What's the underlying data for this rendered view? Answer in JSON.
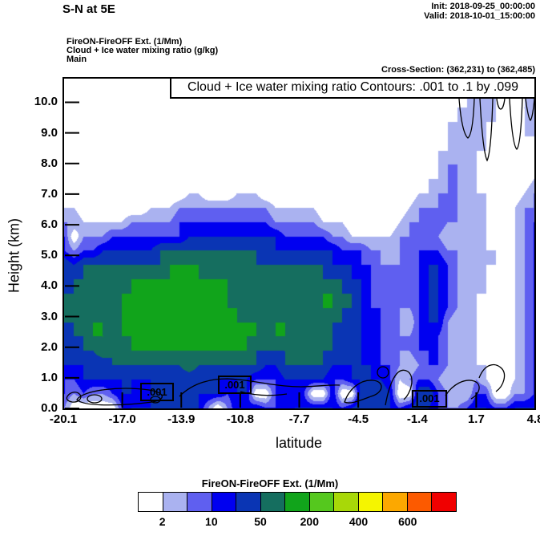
{
  "header": {
    "title": "S-N at 5E",
    "init": "Init: 2018-09-25_00:00:00",
    "valid": "Valid: 2018-10-01_15:00:00",
    "subtitle_lines": [
      "FireON-FireOFF Ext.  (1/Mm)",
      "Cloud + Ice water mixing ratio  (g/kg)",
      "Main"
    ],
    "cross_section": "Cross-Section: (362,231) to (362,485)"
  },
  "chart_data": {
    "type": "heatmap",
    "title": "Cloud + Ice water mixing ratio Contours: .001 to .1 by .099",
    "xlabel": "latitude",
    "ylabel": "Height (km)",
    "x_ticks": [
      "-20.1",
      "-17.0",
      "-13.9",
      "-10.8",
      "-7.7",
      "-4.5",
      "-1.4",
      "1.7",
      "4.8"
    ],
    "y_ticks": [
      "0.0",
      "1.0",
      "2.0",
      "3.0",
      "4.0",
      "5.0",
      "6.0",
      "7.0",
      "8.0",
      "9.0",
      "10.0"
    ],
    "xlim": [
      -20.1,
      4.8
    ],
    "ylim": [
      0.0,
      10.9
    ],
    "grid_on": false,
    "contour_labels": [
      ".001",
      ".001",
      ".001"
    ],
    "contour_line_levels": [
      0.001,
      0.1
    ],
    "grid": {
      "cols": 50,
      "rows": 24,
      "top_km": 10.7,
      "bottom_km": 0.35,
      "palette": [
        "#ffffff",
        "#aab2f0",
        "#5f5ff0",
        "#0000f0",
        "#0a35b4",
        "#156e5f",
        "#11a41b",
        "#55c81e"
      ],
      "values": [
        [
          0,
          0,
          0,
          0,
          0,
          0,
          0,
          0,
          0,
          0,
          0,
          0,
          0,
          0,
          0,
          0,
          0,
          0,
          0,
          0,
          0,
          0,
          0,
          0,
          0,
          0,
          0,
          0,
          0,
          0,
          0,
          0,
          0,
          0,
          0,
          0,
          0,
          0,
          0,
          0,
          0,
          0,
          0,
          1,
          1,
          1,
          0,
          0,
          1,
          2
        ],
        [
          0,
          0,
          0,
          0,
          0,
          0,
          0,
          0,
          0,
          0,
          0,
          0,
          0,
          0,
          0,
          0,
          0,
          0,
          0,
          0,
          0,
          0,
          0,
          0,
          0,
          0,
          0,
          0,
          0,
          0,
          0,
          0,
          0,
          0,
          0,
          0,
          0,
          0,
          0,
          0,
          0,
          0,
          1,
          2,
          1,
          1,
          0,
          0,
          1,
          2
        ],
        [
          0,
          0,
          0,
          0,
          0,
          0,
          0,
          0,
          0,
          0,
          0,
          0,
          0,
          0,
          0,
          0,
          0,
          0,
          0,
          0,
          0,
          0,
          0,
          0,
          0,
          0,
          0,
          0,
          0,
          0,
          0,
          0,
          0,
          0,
          0,
          0,
          0,
          0,
          0,
          0,
          0,
          1,
          1,
          2,
          1,
          1,
          0,
          1,
          1,
          1
        ],
        [
          0,
          0,
          0,
          0,
          0,
          0,
          0,
          0,
          0,
          0,
          0,
          0,
          0,
          0,
          0,
          0,
          0,
          0,
          0,
          0,
          0,
          0,
          0,
          0,
          0,
          0,
          0,
          0,
          0,
          0,
          0,
          0,
          0,
          0,
          0,
          0,
          0,
          0,
          0,
          0,
          1,
          1,
          2,
          2,
          1,
          1,
          0,
          0,
          1,
          1
        ],
        [
          0,
          0,
          0,
          0,
          0,
          0,
          0,
          0,
          0,
          0,
          0,
          0,
          0,
          0,
          0,
          0,
          0,
          0,
          0,
          0,
          0,
          0,
          0,
          0,
          0,
          0,
          0,
          0,
          0,
          0,
          0,
          0,
          0,
          0,
          0,
          0,
          0,
          0,
          0,
          0,
          1,
          1,
          2,
          1,
          1,
          0,
          0,
          0,
          1,
          1
        ],
        [
          0,
          0,
          0,
          0,
          0,
          0,
          0,
          0,
          0,
          0,
          0,
          0,
          0,
          0,
          0,
          0,
          0,
          0,
          0,
          0,
          0,
          0,
          0,
          0,
          0,
          0,
          0,
          0,
          0,
          0,
          0,
          0,
          0,
          0,
          0,
          0,
          0,
          0,
          0,
          1,
          1,
          2,
          2,
          1,
          1,
          0,
          0,
          0,
          0,
          0
        ],
        [
          0,
          0,
          0,
          0,
          0,
          0,
          0,
          0,
          0,
          0,
          0,
          0,
          0,
          0,
          0,
          0,
          0,
          0,
          0,
          0,
          0,
          0,
          0,
          0,
          0,
          0,
          0,
          0,
          0,
          0,
          0,
          0,
          0,
          0,
          0,
          0,
          0,
          0,
          0,
          1,
          2,
          2,
          1,
          1,
          0,
          0,
          0,
          0,
          0,
          0
        ],
        [
          0,
          0,
          0,
          0,
          0,
          0,
          0,
          0,
          0,
          0,
          0,
          0,
          0,
          0,
          0,
          0,
          0,
          0,
          0,
          0,
          0,
          0,
          0,
          0,
          0,
          0,
          0,
          0,
          0,
          0,
          0,
          0,
          0,
          0,
          0,
          0,
          0,
          0,
          1,
          1,
          2,
          2,
          1,
          1,
          0,
          0,
          0,
          0,
          0,
          1
        ],
        [
          0,
          0,
          0,
          0,
          0,
          0,
          0,
          0,
          0,
          0,
          0,
          0,
          0,
          1,
          1,
          0,
          0,
          0,
          1,
          1,
          1,
          0,
          0,
          0,
          0,
          0,
          0,
          0,
          0,
          0,
          0,
          0,
          0,
          0,
          0,
          0,
          0,
          1,
          1,
          2,
          2,
          2,
          1,
          1,
          1,
          0,
          0,
          0,
          1,
          2
        ],
        [
          1,
          1,
          0,
          0,
          0,
          0,
          0,
          0,
          0,
          1,
          1,
          1,
          2,
          2,
          2,
          2,
          2,
          2,
          2,
          2,
          2,
          2,
          1,
          1,
          1,
          1,
          1,
          0,
          0,
          0,
          0,
          0,
          0,
          0,
          0,
          0,
          1,
          2,
          2,
          2,
          2,
          2,
          1,
          1,
          1,
          0,
          0,
          1,
          2,
          2
        ],
        [
          2,
          2,
          1,
          1,
          1,
          1,
          1,
          2,
          2,
          2,
          2,
          2,
          3,
          3,
          3,
          3,
          3,
          3,
          3,
          3,
          3,
          3,
          2,
          2,
          2,
          2,
          2,
          1,
          1,
          1,
          0,
          0,
          0,
          0,
          0,
          1,
          2,
          2,
          2,
          3,
          2,
          2,
          1,
          1,
          1,
          0,
          0,
          1,
          2,
          3
        ],
        [
          3,
          0,
          2,
          2,
          2,
          3,
          3,
          3,
          3,
          3,
          3,
          3,
          3,
          4,
          4,
          4,
          4,
          4,
          4,
          4,
          4,
          4,
          4,
          3,
          3,
          3,
          3,
          3,
          2,
          2,
          1,
          1,
          1,
          1,
          1,
          2,
          2,
          2,
          2,
          2,
          1,
          1,
          1,
          1,
          1,
          0,
          0,
          1,
          2,
          3
        ],
        [
          3,
          2,
          3,
          3,
          4,
          4,
          4,
          4,
          4,
          4,
          5,
          5,
          5,
          5,
          5,
          5,
          5,
          5,
          5,
          5,
          5,
          4,
          4,
          4,
          4,
          4,
          4,
          4,
          4,
          3,
          3,
          3,
          2,
          2,
          1,
          2,
          3,
          3,
          3,
          3,
          2,
          2,
          1,
          1,
          1,
          1,
          0,
          1,
          2,
          3
        ],
        [
          5,
          4,
          5,
          5,
          5,
          5,
          5,
          5,
          5,
          5,
          5,
          6,
          6,
          6,
          6,
          5,
          5,
          5,
          5,
          5,
          5,
          5,
          5,
          5,
          5,
          5,
          5,
          5,
          4,
          4,
          4,
          3,
          3,
          2,
          2,
          2,
          2,
          3,
          4,
          4,
          3,
          2,
          1,
          1,
          1,
          1,
          0,
          1,
          2,
          3
        ],
        [
          4,
          5,
          5,
          5,
          5,
          6,
          5,
          6,
          6,
          6,
          6,
          6,
          6,
          7,
          6,
          6,
          6,
          6,
          6,
          6,
          5,
          5,
          5,
          5,
          5,
          5,
          5,
          5,
          5,
          5,
          4,
          4,
          3,
          2,
          2,
          2,
          2,
          3,
          4,
          4,
          3,
          2,
          1,
          1,
          1,
          0,
          0,
          1,
          2,
          3
        ],
        [
          5,
          5,
          5,
          5,
          5,
          5,
          6,
          6,
          6,
          6,
          6,
          6,
          6,
          6,
          6,
          6,
          6,
          6,
          5,
          5,
          5,
          5,
          5,
          5,
          5,
          5,
          5,
          6,
          6,
          5,
          5,
          4,
          3,
          2,
          2,
          2,
          2,
          3,
          4,
          4,
          3,
          2,
          1,
          1,
          1,
          0,
          0,
          1,
          2,
          3
        ],
        [
          5,
          5,
          5,
          5,
          5,
          6,
          6,
          6,
          6,
          6,
          6,
          6,
          6,
          6,
          6,
          6,
          6,
          6,
          6,
          5,
          5,
          5,
          5,
          5,
          5,
          5,
          5,
          6,
          6,
          5,
          5,
          4,
          3,
          3,
          2,
          2,
          2,
          3,
          4,
          4,
          3,
          2,
          1,
          1,
          0,
          0,
          0,
          1,
          2,
          3
        ],
        [
          5,
          5,
          5,
          6,
          6,
          5,
          6,
          6,
          6,
          6,
          6,
          6,
          6,
          6,
          6,
          6,
          6,
          6,
          6,
          6,
          6,
          5,
          6,
          6,
          5,
          5,
          5,
          5,
          5,
          5,
          4,
          4,
          3,
          3,
          2,
          2,
          1,
          3,
          4,
          4,
          2,
          1,
          1,
          1,
          0,
          0,
          0,
          1,
          2,
          3
        ],
        [
          4,
          5,
          5,
          6,
          6,
          6,
          6,
          6,
          6,
          6,
          6,
          6,
          6,
          6,
          6,
          6,
          6,
          6,
          6,
          6,
          6,
          6,
          6,
          6,
          5,
          5,
          5,
          5,
          5,
          4,
          4,
          4,
          3,
          3,
          2,
          2,
          2,
          3,
          4,
          3,
          2,
          1,
          1,
          1,
          0,
          0,
          0,
          1,
          2,
          3
        ],
        [
          4,
          4,
          5,
          5,
          6,
          5,
          5,
          6,
          6,
          6,
          6,
          6,
          6,
          6,
          6,
          6,
          6,
          6,
          6,
          6,
          5,
          5,
          5,
          5,
          5,
          5,
          5,
          5,
          5,
          4,
          4,
          4,
          3,
          3,
          2,
          2,
          2,
          3,
          3,
          3,
          2,
          1,
          1,
          1,
          0,
          0,
          0,
          1,
          2,
          3
        ],
        [
          4,
          4,
          4,
          4,
          4,
          5,
          5,
          5,
          5,
          5,
          5,
          5,
          5,
          6,
          5,
          5,
          5,
          5,
          5,
          5,
          5,
          4,
          4,
          5,
          5,
          5,
          5,
          5,
          4,
          4,
          4,
          4,
          4,
          3,
          3,
          2,
          1,
          2,
          3,
          3,
          2,
          1,
          1,
          1,
          1,
          0,
          0,
          1,
          2,
          3
        ],
        [
          3,
          3,
          4,
          4,
          4,
          4,
          4,
          4,
          4,
          4,
          4,
          4,
          4,
          4,
          4,
          4,
          4,
          4,
          4,
          4,
          3,
          3,
          3,
          4,
          4,
          4,
          4,
          4,
          3,
          3,
          4,
          4,
          4,
          4,
          3,
          1,
          2,
          3,
          3,
          2,
          1,
          1,
          1,
          2,
          1,
          0,
          0,
          1,
          2,
          3
        ],
        [
          3,
          2,
          3,
          2,
          2,
          3,
          4,
          4,
          3,
          4,
          4,
          4,
          5,
          4,
          4,
          4,
          4,
          3,
          4,
          4,
          0,
          0,
          3,
          3,
          3,
          3,
          0,
          0,
          4,
          0,
          0,
          5,
          5,
          5,
          4,
          0,
          0,
          5,
          5,
          3,
          2,
          1,
          1,
          3,
          3,
          0,
          0,
          2,
          2,
          3
        ],
        [
          2,
          0,
          0,
          0,
          0,
          0,
          3,
          4,
          4,
          4,
          4,
          4,
          4,
          4,
          4,
          2,
          0,
          2,
          4,
          3,
          4,
          3,
          3,
          3,
          4,
          4,
          4,
          4,
          4,
          3,
          4,
          5,
          4,
          4,
          4,
          3,
          4,
          5,
          4,
          3,
          2,
          2,
          3,
          4,
          4,
          3,
          3,
          4,
          4,
          4
        ]
      ]
    }
  },
  "colorbar": {
    "title": "FireON-FireOFF Ext.  (1/Mm)",
    "colors": [
      "#ffffff",
      "#aab2f0",
      "#5f5ff0",
      "#0000f0",
      "#0a35b4",
      "#156e5f",
      "#11a41b",
      "#55c81e",
      "#a8d808",
      "#f5f500",
      "#fca800",
      "#fc5a00",
      "#f00000"
    ],
    "tick_labels": [
      "2",
      "10",
      "50",
      "200",
      "400",
      "600"
    ],
    "tick_edge_indices": [
      1,
      3,
      5,
      7,
      9,
      11
    ]
  }
}
